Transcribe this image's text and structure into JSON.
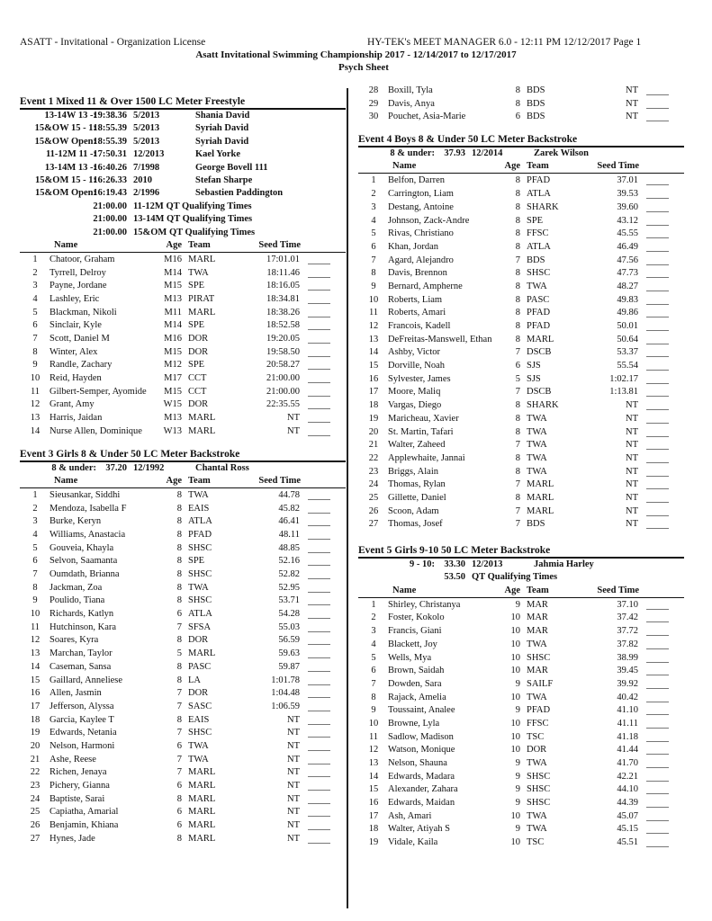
{
  "header": {
    "license": "ASATT - Invitational - Organization License",
    "software": "HY-TEK's MEET MANAGER 6.0 - 12:11 PM  12/12/2017  Page 1",
    "title": "Asatt Invitational Swimming Championship 2017 - 12/14/2017 to 12/17/2017",
    "subtitle": "Psych Sheet"
  },
  "columns": {
    "name": "Name",
    "age": "Age",
    "team": "Team",
    "seed": "Seed Time"
  },
  "event1": {
    "title": "Event  1   Mixed 11 & Over 1500 LC Meter Freestyle",
    "records": [
      [
        "13-14W 13 -:",
        "19:38.36",
        "5/2013",
        "Shania David"
      ],
      [
        "15&OW 15 - 1:",
        "18:55.39",
        "5/2013",
        "Syriah David"
      ],
      [
        "15&OW Open:",
        "18:55.39",
        "5/2013",
        "Syriah David"
      ],
      [
        "11-12M 11 -:",
        "17:50.31",
        "12/2013",
        "Kael Yorke"
      ],
      [
        "13-14M 13 -:",
        "16:40.26",
        "7/1998",
        "George Bovell 111"
      ],
      [
        "15&OM 15 - 1:",
        "16:26.33",
        "2010",
        "Stefan Sharpe"
      ],
      [
        "15&OM Open:",
        "16:19.43",
        "2/1996",
        "Sebastien Paddington"
      ]
    ],
    "qualifying": [
      [
        "21:00.00",
        "11-12M QT Qualifying Times"
      ],
      [
        "21:00.00",
        "13-14M QT Qualifying Times"
      ],
      [
        "21:00.00",
        "15&OM QT Qualifying Times"
      ]
    ],
    "entries": [
      [
        "1",
        "Chatoor, Graham",
        "M16",
        "MARL",
        "17:01.01"
      ],
      [
        "2",
        "Tyrrell, Delroy",
        "M14",
        "TWA",
        "18:11.46"
      ],
      [
        "3",
        "Payne, Jordane",
        "M15",
        "SPE",
        "18:16.05"
      ],
      [
        "4",
        "Lashley, Eric",
        "M13",
        "PIRAT",
        "18:34.81"
      ],
      [
        "5",
        "Blackman, Nikoli",
        "M11",
        "MARL",
        "18:38.26"
      ],
      [
        "6",
        "Sinclair, Kyle",
        "M14",
        "SPE",
        "18:52.58"
      ],
      [
        "7",
        "Scott, Daniel M",
        "M16",
        "DOR",
        "19:20.05"
      ],
      [
        "8",
        "Winter, Alex",
        "M15",
        "DOR",
        "19:58.50"
      ],
      [
        "9",
        "Randle, Zachary",
        "M12",
        "SPE",
        "20:58.27"
      ],
      [
        "10",
        "Reid, Hayden",
        "M17",
        "CCT",
        "21:00.00"
      ],
      [
        "11",
        "Gilbert-Semper, Ayomide",
        "M15",
        "CCT",
        "21:00.00"
      ],
      [
        "12",
        "Grant, Amy",
        "W15",
        "DOR",
        "22:35.55"
      ],
      [
        "13",
        "Harris, Jaidan",
        "M13",
        "MARL",
        "NT"
      ],
      [
        "14",
        "Nurse Allen, Dominique",
        "W13",
        "MARL",
        "NT"
      ]
    ]
  },
  "event3": {
    "title": "Event  3   Girls 8 & Under 50 LC Meter Backstroke",
    "records": [
      [
        "8 & under:",
        "37.20",
        "12/1992",
        "Chantal Ross"
      ]
    ],
    "qualifying": [],
    "entries": [
      [
        "1",
        "Sieusankar, Siddhi",
        "8",
        "TWA",
        "44.78"
      ],
      [
        "2",
        "Mendoza, Isabella F",
        "8",
        "EAIS",
        "45.82"
      ],
      [
        "3",
        "Burke, Keryn",
        "8",
        "ATLA",
        "46.41"
      ],
      [
        "4",
        "Williams, Anastacia",
        "8",
        "PFAD",
        "48.11"
      ],
      [
        "5",
        "Gouveia, Khayla",
        "8",
        "SHSC",
        "48.85"
      ],
      [
        "6",
        "Selvon, Saamanta",
        "8",
        "SPE",
        "52.16"
      ],
      [
        "7",
        "Oumdath, Brianna",
        "8",
        "SHSC",
        "52.82"
      ],
      [
        "8",
        "Jackman, Zoa",
        "8",
        "TWA",
        "52.95"
      ],
      [
        "9",
        "Poulido, Tiana",
        "8",
        "SHSC",
        "53.71"
      ],
      [
        "10",
        "Richards, Katlyn",
        "6",
        "ATLA",
        "54.28"
      ],
      [
        "11",
        "Hutchinson, Kara",
        "7",
        "SFSA",
        "55.03"
      ],
      [
        "12",
        "Soares, Kyra",
        "8",
        "DOR",
        "56.59"
      ],
      [
        "13",
        "Marchan, Taylor",
        "5",
        "MARL",
        "59.63"
      ],
      [
        "14",
        "Caseman, Sansa",
        "8",
        "PASC",
        "59.87"
      ],
      [
        "15",
        "Gaillard, Anneliese",
        "8",
        "LA",
        "1:01.78"
      ],
      [
        "16",
        "Allen, Jasmin",
        "7",
        "DOR",
        "1:04.48"
      ],
      [
        "17",
        "Jefferson, Alyssa",
        "7",
        "SASC",
        "1:06.59"
      ],
      [
        "18",
        "Garcia, Kaylee T",
        "8",
        "EAIS",
        "NT"
      ],
      [
        "19",
        "Edwards, Netania",
        "7",
        "SHSC",
        "NT"
      ],
      [
        "20",
        "Nelson, Harmoni",
        "6",
        "TWA",
        "NT"
      ],
      [
        "21",
        "Ashe, Reese",
        "7",
        "TWA",
        "NT"
      ],
      [
        "22",
        "Richen, Jenaya",
        "7",
        "MARL",
        "NT"
      ],
      [
        "23",
        "Pichery, Gianna",
        "6",
        "MARL",
        "NT"
      ],
      [
        "24",
        "Baptiste, Sarai",
        "8",
        "MARL",
        "NT"
      ],
      [
        "25",
        "Capiatha, Amarial",
        "6",
        "MARL",
        "NT"
      ],
      [
        "26",
        "Benjamin, Khiana",
        "6",
        "MARL",
        "NT"
      ],
      [
        "27",
        "Hynes, Jade",
        "8",
        "MARL",
        "NT"
      ],
      [
        "28",
        "Boxill, Tyla",
        "8",
        "BDS",
        "NT"
      ],
      [
        "29",
        "Davis, Anya",
        "8",
        "BDS",
        "NT"
      ],
      [
        "30",
        "Pouchet, Asia-Marie",
        "6",
        "BDS",
        "NT"
      ]
    ]
  },
  "event4": {
    "title": "Event  4   Boys 8 & Under 50 LC Meter Backstroke",
    "records": [
      [
        "8 & under:",
        "37.93",
        "12/2014",
        "Zarek Wilson"
      ]
    ],
    "qualifying": [],
    "entries": [
      [
        "1",
        "Belfon, Darren",
        "8",
        "PFAD",
        "37.01"
      ],
      [
        "2",
        "Carrington, Liam",
        "8",
        "ATLA",
        "39.53"
      ],
      [
        "3",
        "Destang, Antoine",
        "8",
        "SHARK",
        "39.60"
      ],
      [
        "4",
        "Johnson, Zack-Andre",
        "8",
        "SPE",
        "43.12"
      ],
      [
        "5",
        "Rivas, Christiano",
        "8",
        "FFSC",
        "45.55"
      ],
      [
        "6",
        "Khan, Jordan",
        "8",
        "ATLA",
        "46.49"
      ],
      [
        "7",
        "Agard, Alejandro",
        "7",
        "BDS",
        "47.56"
      ],
      [
        "8",
        "Davis, Brennon",
        "8",
        "SHSC",
        "47.73"
      ],
      [
        "9",
        "Bernard, Ampherne",
        "8",
        "TWA",
        "48.27"
      ],
      [
        "10",
        "Roberts, Liam",
        "8",
        "PASC",
        "49.83"
      ],
      [
        "11",
        "Roberts, Amari",
        "8",
        "PFAD",
        "49.86"
      ],
      [
        "12",
        "Francois, Kadell",
        "8",
        "PFAD",
        "50.01"
      ],
      [
        "13",
        "DeFreitas-Manswell, Ethan",
        "8",
        "MARL",
        "50.64"
      ],
      [
        "14",
        "Ashby, Victor",
        "7",
        "DSCB",
        "53.37"
      ],
      [
        "15",
        "Dorville, Noah",
        "6",
        "SJS",
        "55.54"
      ],
      [
        "16",
        "Sylvester, James",
        "5",
        "SJS",
        "1:02.17"
      ],
      [
        "17",
        "Moore, Maliq",
        "7",
        "DSCB",
        "1:13.81"
      ],
      [
        "18",
        "Vargas, Diego",
        "8",
        "SHARK",
        "NT"
      ],
      [
        "19",
        "Maricheau, Xavier",
        "8",
        "TWA",
        "NT"
      ],
      [
        "20",
        "St. Martin, Tafari",
        "8",
        "TWA",
        "NT"
      ],
      [
        "21",
        "Walter, Zaheed",
        "7",
        "TWA",
        "NT"
      ],
      [
        "22",
        "Applewhaite, Jannai",
        "8",
        "TWA",
        "NT"
      ],
      [
        "23",
        "Briggs, Alain",
        "8",
        "TWA",
        "NT"
      ],
      [
        "24",
        "Thomas, Rylan",
        "7",
        "MARL",
        "NT"
      ],
      [
        "25",
        "Gillette, Daniel",
        "8",
        "MARL",
        "NT"
      ],
      [
        "26",
        "Scoon, Adam",
        "7",
        "MARL",
        "NT"
      ],
      [
        "27",
        "Thomas, Josef",
        "7",
        "BDS",
        "NT"
      ]
    ]
  },
  "event5": {
    "title": "Event  5   Girls 9-10 50 LC Meter Backstroke",
    "records": [
      [
        "9 - 10:",
        "33.30",
        "12/2013",
        "Jahmia Harley"
      ]
    ],
    "qualifying": [
      [
        "53.50",
        "QT Qualifying Times"
      ]
    ],
    "entries": [
      [
        "1",
        "Shirley, Christanya",
        "9",
        "MAR",
        "37.10"
      ],
      [
        "2",
        "Foster, Kokolo",
        "10",
        "MAR",
        "37.42"
      ],
      [
        "3",
        "Francis, Giani",
        "10",
        "MAR",
        "37.72"
      ],
      [
        "4",
        "Blackett, Joy",
        "10",
        "TWA",
        "37.82"
      ],
      [
        "5",
        "Wells, Mya",
        "10",
        "SHSC",
        "38.99"
      ],
      [
        "6",
        "Brown, Saidah",
        "10",
        "MAR",
        "39.45"
      ],
      [
        "7",
        "Dowden, Sara",
        "9",
        "SAILF",
        "39.92"
      ],
      [
        "8",
        "Rajack, Amelia",
        "10",
        "TWA",
        "40.42"
      ],
      [
        "9",
        "Toussaint, Analee",
        "9",
        "PFAD",
        "41.10"
      ],
      [
        "10",
        "Browne, Lyla",
        "10",
        "FFSC",
        "41.11"
      ],
      [
        "11",
        "Sadlow, Madison",
        "10",
        "TSC",
        "41.18"
      ],
      [
        "12",
        "Watson, Monique",
        "10",
        "DOR",
        "41.44"
      ],
      [
        "13",
        "Nelson, Shauna",
        "9",
        "TWA",
        "41.70"
      ],
      [
        "14",
        "Edwards, Madara",
        "9",
        "SHSC",
        "42.21"
      ],
      [
        "15",
        "Alexander, Zahara",
        "9",
        "SHSC",
        "44.10"
      ],
      [
        "16",
        "Edwards, Maidan",
        "9",
        "SHSC",
        "44.39"
      ],
      [
        "17",
        "Ash, Amari",
        "10",
        "TWA",
        "45.07"
      ],
      [
        "18",
        "Walter, Atiyah S",
        "9",
        "TWA",
        "45.15"
      ],
      [
        "19",
        "Vidale, Kaila",
        "10",
        "TSC",
        "45.51"
      ]
    ]
  }
}
